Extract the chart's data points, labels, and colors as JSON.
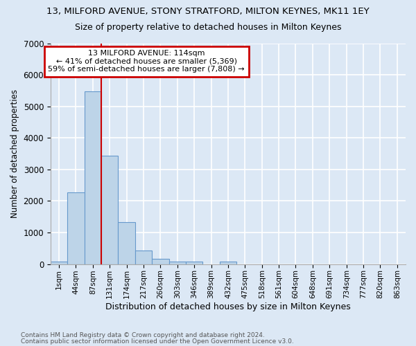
{
  "title": "13, MILFORD AVENUE, STONY STRATFORD, MILTON KEYNES, MK11 1EY",
  "subtitle": "Size of property relative to detached houses in Milton Keynes",
  "xlabel": "Distribution of detached houses by size in Milton Keynes",
  "ylabel": "Number of detached properties",
  "footer_line1": "Contains HM Land Registry data © Crown copyright and database right 2024.",
  "footer_line2": "Contains public sector information licensed under the Open Government Licence v3.0.",
  "bar_labels": [
    "1sqm",
    "44sqm",
    "87sqm",
    "131sqm",
    "174sqm",
    "217sqm",
    "260sqm",
    "303sqm",
    "346sqm",
    "389sqm",
    "432sqm",
    "475sqm",
    "518sqm",
    "561sqm",
    "604sqm",
    "648sqm",
    "691sqm",
    "734sqm",
    "777sqm",
    "820sqm",
    "863sqm"
  ],
  "bar_values": [
    75,
    2280,
    5480,
    3430,
    1320,
    430,
    165,
    80,
    75,
    0,
    75,
    0,
    0,
    0,
    0,
    0,
    0,
    0,
    0,
    0,
    0
  ],
  "bar_color": "#bdd4e8",
  "bar_edge_color": "#6699cc",
  "bg_color": "#dce8f5",
  "grid_color": "#ffffff",
  "vline_color": "#cc0000",
  "annotation_text": "13 MILFORD AVENUE: 114sqm\n← 41% of detached houses are smaller (5,369)\n59% of semi-detached houses are larger (7,808) →",
  "annotation_box_color": "#ffffff",
  "annotation_box_edge": "#cc0000",
  "ylim": [
    0,
    7000
  ],
  "yticks": [
    0,
    1000,
    2000,
    3000,
    4000,
    5000,
    6000,
    7000
  ],
  "title_fontsize": 9.5,
  "subtitle_fontsize": 9,
  "footer_fontsize": 6.5
}
